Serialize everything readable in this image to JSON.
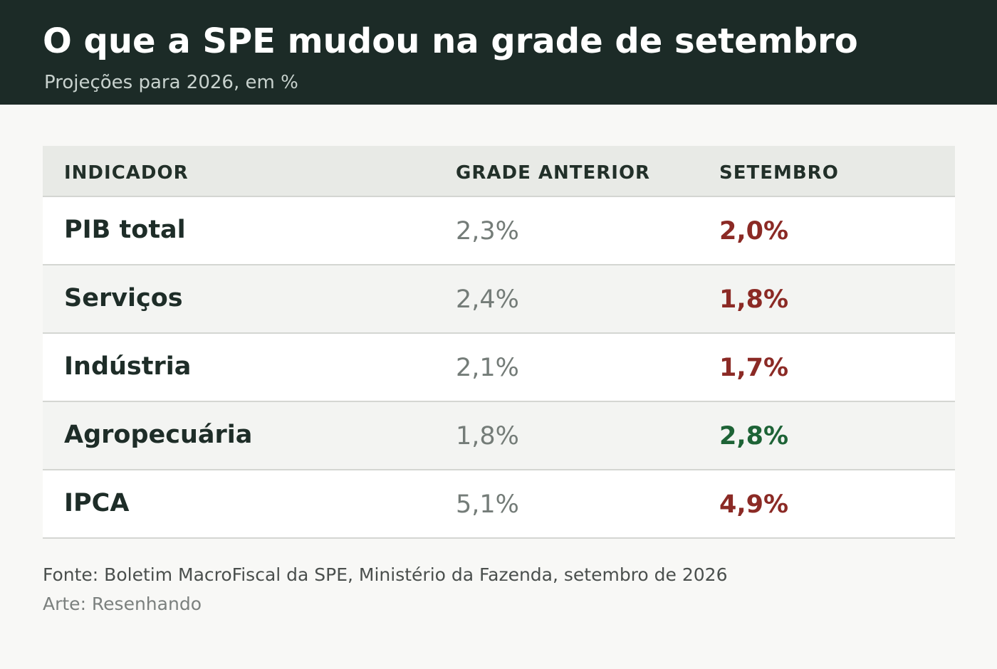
{
  "header": {
    "title": "O que a SPE mudou na grade de setembro",
    "subtitle": "Projeções para 2026, em %"
  },
  "chart_data": {
    "type": "table",
    "columns": [
      "INDICADOR",
      "GRADE ANTERIOR",
      "SETEMBRO"
    ],
    "rows": [
      {
        "indicator": "PIB total",
        "previous": "2,3%",
        "september": "2,0%",
        "direction": "down"
      },
      {
        "indicator": "Serviços",
        "previous": "2,4%",
        "september": "1,8%",
        "direction": "down"
      },
      {
        "indicator": "Indústria",
        "previous": "2,1%",
        "september": "1,7%",
        "direction": "down"
      },
      {
        "indicator": "Agropecuária",
        "previous": "1,8%",
        "september": "2,8%",
        "direction": "up"
      },
      {
        "indicator": "IPCA",
        "previous": "5,1%",
        "september": "4,9%",
        "direction": "down"
      }
    ]
  },
  "colors": {
    "down": "#8b2a25",
    "up": "#1d6336"
  },
  "footer": {
    "source": "Fonte: Boletim MacroFiscal da SPE, Ministério da Fazenda, setembro de 2026",
    "credit": "Arte: Resenhando"
  }
}
